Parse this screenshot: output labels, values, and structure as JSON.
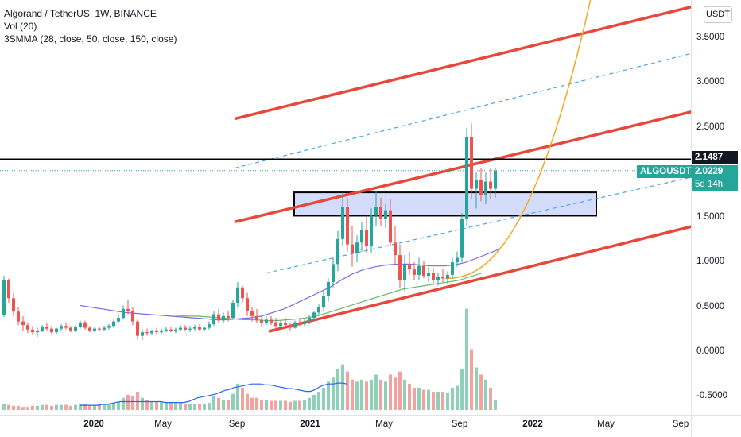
{
  "legend": {
    "symbol": "Algorand / TetherUS, 1W, BINANCE",
    "volume": "Vol (20)",
    "indicator": "3SMMA (28, close, 50, close, 150, close)"
  },
  "currency": "USDT",
  "price_axis": [
    "3.5000",
    "3.0000",
    "2.5000",
    "1.5000",
    "1.0000",
    "0.5000",
    "0.0000",
    "-0.5000"
  ],
  "time_axis": [
    {
      "label": "2020",
      "year": true
    },
    {
      "label": "May",
      "year": false
    },
    {
      "label": "Sep",
      "year": false
    },
    {
      "label": "2021",
      "year": true
    },
    {
      "label": "May",
      "year": false
    },
    {
      "label": "Sep",
      "year": false
    },
    {
      "label": "2022",
      "year": true
    },
    {
      "label": "May",
      "year": false
    },
    {
      "label": "Sep",
      "year": false
    }
  ],
  "markers": {
    "resistance_price": "2.1487",
    "ticker": "ALGOUSDT",
    "last_price": "2.0229",
    "countdown": "5d 14h"
  },
  "colors": {
    "up": "#26a69a",
    "down": "#ef5350",
    "channel": "#e8473c",
    "dashed": "#42a5f5",
    "sma_fast": "#7b68ee",
    "sma_slow": "#66bb6a",
    "parabolic": "#f5a623",
    "zone_fill": "#d4dcfb",
    "volume_ma": "#2962ff"
  },
  "chart_data": {
    "type": "candlestick",
    "timeframe": "1W",
    "weeks_start": "2019-10",
    "candles": [
      [
        0.41,
        0.85,
        0.39,
        0.8
      ],
      [
        0.8,
        0.82,
        0.55,
        0.6
      ],
      [
        0.6,
        0.66,
        0.4,
        0.45
      ],
      [
        0.45,
        0.5,
        0.3,
        0.34
      ],
      [
        0.34,
        0.4,
        0.24,
        0.3
      ],
      [
        0.3,
        0.33,
        0.21,
        0.25
      ],
      [
        0.25,
        0.29,
        0.19,
        0.22
      ],
      [
        0.22,
        0.27,
        0.17,
        0.24
      ],
      [
        0.24,
        0.3,
        0.22,
        0.28
      ],
      [
        0.28,
        0.32,
        0.24,
        0.26
      ],
      [
        0.26,
        0.29,
        0.2,
        0.22
      ],
      [
        0.22,
        0.27,
        0.2,
        0.26
      ],
      [
        0.26,
        0.31,
        0.24,
        0.29
      ],
      [
        0.29,
        0.33,
        0.25,
        0.27
      ],
      [
        0.27,
        0.29,
        0.22,
        0.24
      ],
      [
        0.24,
        0.3,
        0.22,
        0.28
      ],
      [
        0.28,
        0.35,
        0.26,
        0.33
      ],
      [
        0.33,
        0.35,
        0.25,
        0.27
      ],
      [
        0.27,
        0.29,
        0.22,
        0.24
      ],
      [
        0.24,
        0.28,
        0.22,
        0.26
      ],
      [
        0.26,
        0.28,
        0.23,
        0.25
      ],
      [
        0.25,
        0.29,
        0.23,
        0.27
      ],
      [
        0.27,
        0.31,
        0.25,
        0.29
      ],
      [
        0.29,
        0.36,
        0.27,
        0.34
      ],
      [
        0.34,
        0.42,
        0.32,
        0.38
      ],
      [
        0.38,
        0.52,
        0.36,
        0.48
      ],
      [
        0.48,
        0.58,
        0.42,
        0.46
      ],
      [
        0.46,
        0.5,
        0.3,
        0.34
      ],
      [
        0.34,
        0.36,
        0.14,
        0.18
      ],
      [
        0.18,
        0.25,
        0.13,
        0.22
      ],
      [
        0.22,
        0.26,
        0.18,
        0.21
      ],
      [
        0.21,
        0.25,
        0.19,
        0.23
      ],
      [
        0.23,
        0.27,
        0.2,
        0.22
      ],
      [
        0.22,
        0.26,
        0.2,
        0.24
      ],
      [
        0.24,
        0.28,
        0.22,
        0.25
      ],
      [
        0.25,
        0.28,
        0.22,
        0.23
      ],
      [
        0.23,
        0.27,
        0.21,
        0.25
      ],
      [
        0.25,
        0.3,
        0.23,
        0.27
      ],
      [
        0.27,
        0.3,
        0.24,
        0.25
      ],
      [
        0.25,
        0.29,
        0.22,
        0.26
      ],
      [
        0.26,
        0.3,
        0.24,
        0.28
      ],
      [
        0.28,
        0.31,
        0.24,
        0.25
      ],
      [
        0.25,
        0.28,
        0.23,
        0.27
      ],
      [
        0.27,
        0.34,
        0.25,
        0.31
      ],
      [
        0.31,
        0.46,
        0.29,
        0.42
      ],
      [
        0.42,
        0.48,
        0.32,
        0.35
      ],
      [
        0.35,
        0.44,
        0.32,
        0.4
      ],
      [
        0.4,
        0.46,
        0.34,
        0.38
      ],
      [
        0.38,
        0.58,
        0.36,
        0.55
      ],
      [
        0.55,
        0.78,
        0.5,
        0.72
      ],
      [
        0.72,
        0.74,
        0.55,
        0.6
      ],
      [
        0.6,
        0.66,
        0.4,
        0.46
      ],
      [
        0.46,
        0.5,
        0.34,
        0.4
      ],
      [
        0.4,
        0.48,
        0.32,
        0.35
      ],
      [
        0.35,
        0.4,
        0.28,
        0.32
      ],
      [
        0.32,
        0.4,
        0.3,
        0.36
      ],
      [
        0.36,
        0.4,
        0.3,
        0.33
      ],
      [
        0.33,
        0.38,
        0.27,
        0.29
      ],
      [
        0.29,
        0.35,
        0.26,
        0.32
      ],
      [
        0.32,
        0.38,
        0.28,
        0.3
      ],
      [
        0.3,
        0.33,
        0.24,
        0.27
      ],
      [
        0.27,
        0.35,
        0.26,
        0.33
      ],
      [
        0.33,
        0.38,
        0.29,
        0.31
      ],
      [
        0.31,
        0.36,
        0.29,
        0.34
      ],
      [
        0.34,
        0.41,
        0.31,
        0.38
      ],
      [
        0.38,
        0.46,
        0.35,
        0.44
      ],
      [
        0.44,
        0.53,
        0.4,
        0.5
      ],
      [
        0.5,
        0.68,
        0.46,
        0.62
      ],
      [
        0.62,
        0.82,
        0.56,
        0.78
      ],
      [
        0.78,
        1.05,
        0.72,
        0.98
      ],
      [
        0.98,
        1.35,
        0.9,
        1.26
      ],
      [
        1.26,
        1.78,
        1.18,
        1.62
      ],
      [
        1.62,
        1.72,
        1.12,
        1.2
      ],
      [
        1.2,
        1.4,
        0.95,
        1.1
      ],
      [
        1.1,
        1.3,
        1.0,
        1.22
      ],
      [
        1.22,
        1.45,
        1.12,
        1.36
      ],
      [
        1.36,
        1.52,
        1.1,
        1.18
      ],
      [
        1.18,
        1.6,
        1.1,
        1.52
      ],
      [
        1.52,
        1.8,
        1.4,
        1.62
      ],
      [
        1.62,
        1.72,
        1.4,
        1.48
      ],
      [
        1.48,
        1.65,
        1.38,
        1.58
      ],
      [
        1.58,
        1.7,
        1.18,
        1.22
      ],
      [
        1.22,
        1.4,
        0.98,
        1.08
      ],
      [
        1.08,
        1.2,
        0.72,
        0.8
      ],
      [
        0.8,
        1.08,
        0.68,
        0.98
      ],
      [
        0.98,
        1.12,
        0.86,
        0.92
      ],
      [
        0.92,
        1.0,
        0.8,
        0.86
      ],
      [
        0.86,
        1.05,
        0.8,
        0.96
      ],
      [
        0.96,
        1.02,
        0.82,
        0.85
      ],
      [
        0.85,
        0.95,
        0.78,
        0.88
      ],
      [
        0.88,
        0.94,
        0.76,
        0.8
      ],
      [
        0.8,
        0.88,
        0.74,
        0.84
      ],
      [
        0.84,
        0.92,
        0.78,
        0.82
      ],
      [
        0.82,
        0.9,
        0.76,
        0.86
      ],
      [
        0.86,
        1.05,
        0.82,
        1.0
      ],
      [
        1.0,
        1.12,
        0.95,
        1.05
      ],
      [
        1.05,
        1.55,
        1.0,
        1.48
      ],
      [
        1.48,
        2.5,
        1.4,
        2.4
      ],
      [
        2.4,
        2.55,
        1.7,
        1.82
      ],
      [
        1.82,
        2.0,
        1.6,
        1.92
      ],
      [
        1.92,
        2.05,
        1.68,
        1.75
      ],
      [
        1.75,
        2.0,
        1.65,
        1.9
      ],
      [
        1.9,
        2.05,
        1.7,
        1.82
      ],
      [
        1.82,
        2.05,
        1.72,
        2.02
      ]
    ],
    "volume": [
      0.06,
      0.05,
      0.04,
      0.04,
      0.03,
      0.03,
      0.04,
      0.04,
      0.05,
      0.05,
      0.04,
      0.05,
      0.05,
      0.05,
      0.04,
      0.05,
      0.06,
      0.06,
      0.05,
      0.05,
      0.05,
      0.05,
      0.06,
      0.07,
      0.08,
      0.12,
      0.15,
      0.14,
      0.18,
      0.12,
      0.1,
      0.08,
      0.08,
      0.08,
      0.07,
      0.07,
      0.07,
      0.07,
      0.06,
      0.06,
      0.06,
      0.06,
      0.06,
      0.07,
      0.14,
      0.12,
      0.1,
      0.1,
      0.16,
      0.26,
      0.22,
      0.16,
      0.12,
      0.12,
      0.1,
      0.1,
      0.09,
      0.09,
      0.09,
      0.09,
      0.08,
      0.09,
      0.09,
      0.1,
      0.12,
      0.15,
      0.18,
      0.22,
      0.28,
      0.32,
      0.4,
      0.45,
      0.38,
      0.3,
      0.28,
      0.3,
      0.28,
      0.3,
      0.35,
      0.3,
      0.28,
      0.35,
      0.32,
      0.38,
      0.3,
      0.26,
      0.22,
      0.22,
      0.2,
      0.2,
      0.18,
      0.18,
      0.18,
      0.17,
      0.22,
      0.24,
      0.4,
      1.0,
      0.6,
      0.42,
      0.35,
      0.3,
      0.22,
      0.1
    ],
    "volume_ma": [
      [
        0.05,
        0.05,
        0.05,
        0.05,
        0.05,
        0.06,
        0.06,
        0.07,
        0.08,
        0.09,
        0.09,
        0.09,
        0.09,
        0.09,
        0.09,
        0.09,
        0.09,
        0.09,
        0.09,
        0.08,
        0.08,
        0.08,
        0.08,
        0.08,
        0.09,
        0.11,
        0.13,
        0.14,
        0.15,
        0.16,
        0.17,
        0.19,
        0.21,
        0.22,
        0.24,
        0.25,
        0.26,
        0.27,
        0.28,
        0.28,
        0.28,
        0.27,
        0.27,
        0.26,
        0.25,
        0.24,
        0.23,
        0.23,
        0.22,
        0.21,
        0.2,
        0.2,
        0.22,
        0.25,
        0.27,
        0.28,
        0.28,
        0.29,
        0.29,
        0.28
      ]
    ],
    "sma": {
      "fast": [
        0.52,
        0.5,
        0.48,
        0.46,
        0.44,
        0.43,
        0.42,
        0.41,
        0.4,
        0.39,
        0.38,
        0.37,
        0.36,
        0.36,
        0.37,
        0.38,
        0.4,
        0.44,
        0.48,
        0.54,
        0.6,
        0.66,
        0.72,
        0.8,
        0.87,
        0.92,
        0.95,
        0.97,
        0.98,
        0.98,
        0.97,
        0.96,
        0.96,
        0.97,
        1.0,
        1.05,
        1.1,
        1.15
      ],
      "slow": [
        0.41,
        0.4,
        0.4,
        0.39,
        0.38,
        0.37,
        0.36,
        0.36,
        0.35,
        0.35,
        0.36,
        0.37,
        0.39,
        0.42,
        0.46,
        0.5,
        0.54,
        0.58,
        0.62,
        0.66,
        0.7,
        0.72,
        0.74,
        0.76,
        0.78,
        0.8,
        0.84,
        0.88
      ]
    },
    "channel": {
      "upper_start": [
        2.6,
        3.42
      ],
      "upper_end": [
        2.75,
        3.85
      ],
      "mid_start": [
        1.45,
        2.6
      ],
      "mid_end": [
        1.6,
        2.65
      ],
      "lower_start": [
        0.23,
        1.4
      ],
      "lower_end": [
        0.38,
        1.4
      ]
    },
    "resistance": 2.1487,
    "last": 2.0229,
    "ylim": [
      -0.62,
      3.9
    ]
  }
}
